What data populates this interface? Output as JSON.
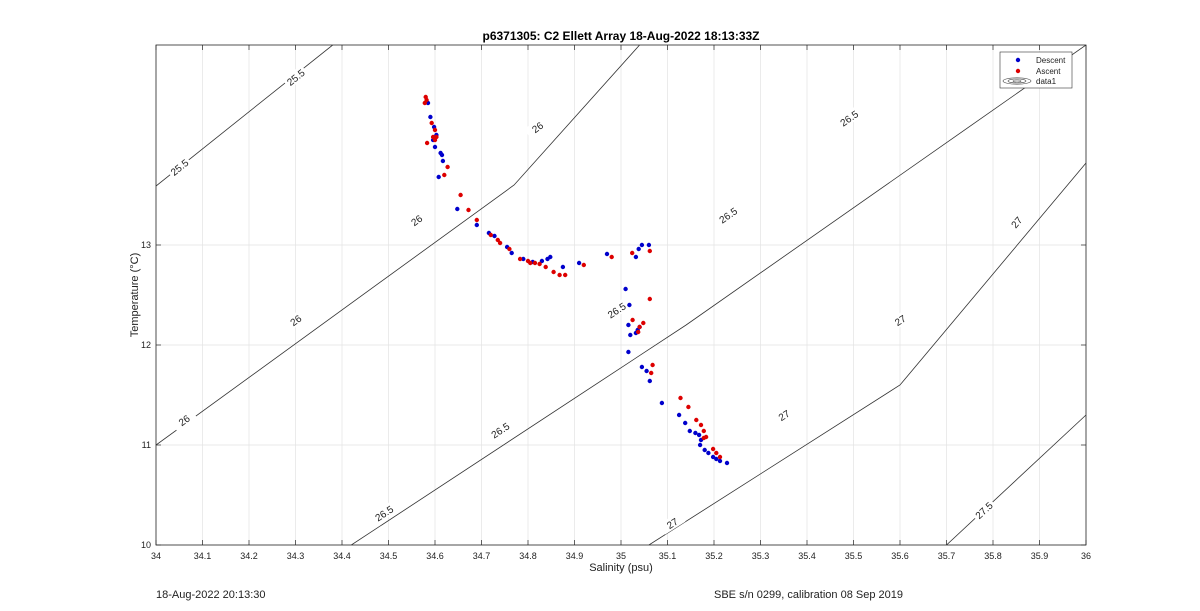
{
  "chart_data": {
    "type": "scatter",
    "title": "p6371305: C2 Ellett Array 18-Aug-2022 18:13:33Z",
    "xlabel": "Salinity (psu)",
    "ylabel": "Temperature (°C)",
    "xlim": [
      34,
      36
    ],
    "ylim": [
      10,
      15
    ],
    "x_ticks": [
      "34",
      "34.1",
      "34.2",
      "34.3",
      "34.4",
      "34.5",
      "34.6",
      "34.7",
      "34.8",
      "34.9",
      "35",
      "35.1",
      "35.2",
      "35.3",
      "35.4",
      "35.5",
      "35.6",
      "35.7",
      "35.8",
      "35.9",
      "36"
    ],
    "y_ticks": [
      "10",
      "11",
      "12",
      "13"
    ],
    "grid": true,
    "legend_position": "top-right",
    "legend": [
      {
        "label": "Descent",
        "color": "#0000cc",
        "marker": "dot"
      },
      {
        "label": "Ascent",
        "color": "#dd0000",
        "marker": "dot"
      },
      {
        "label": "data1",
        "color": "#222222",
        "marker": "contour"
      }
    ],
    "contours": [
      {
        "label": "25.5",
        "points": [
          [
            34.0,
            13.59
          ],
          [
            34.38,
            15.0
          ]
        ],
        "label_positions": [
          [
            34.05,
            13.78
          ],
          [
            34.3,
            14.68
          ]
        ]
      },
      {
        "label": "26",
        "points": [
          [
            34.0,
            11.0
          ],
          [
            34.77,
            13.6
          ],
          [
            35.04,
            15.0
          ]
        ],
        "label_positions": [
          [
            34.06,
            11.25
          ],
          [
            34.3,
            12.25
          ],
          [
            34.56,
            13.25
          ],
          [
            34.82,
            14.18
          ]
        ]
      },
      {
        "label": "26.5",
        "points": [
          [
            34.42,
            10.0
          ],
          [
            35.14,
            12.2
          ],
          [
            36.0,
            15.0
          ]
        ],
        "label_positions": [
          [
            34.49,
            10.32
          ],
          [
            34.74,
            11.15
          ],
          [
            34.99,
            12.35
          ],
          [
            35.23,
            13.3
          ],
          [
            35.49,
            14.27
          ]
        ]
      },
      {
        "label": "27",
        "points": [
          [
            35.06,
            10.0
          ],
          [
            35.6,
            11.6
          ],
          [
            36.0,
            13.82
          ]
        ],
        "label_positions": [
          [
            35.11,
            10.22
          ],
          [
            35.35,
            11.3
          ],
          [
            35.6,
            12.25
          ],
          [
            35.85,
            13.23
          ]
        ]
      },
      {
        "label": "27.5",
        "points": [
          [
            35.7,
            10.0
          ],
          [
            36.0,
            11.3
          ]
        ],
        "label_positions": [
          [
            35.78,
            10.35
          ]
        ]
      }
    ],
    "series": [
      {
        "name": "Descent",
        "color": "#0000cc",
        "points": [
          [
            34.585,
            14.42
          ],
          [
            34.59,
            14.28
          ],
          [
            34.598,
            14.18
          ],
          [
            34.603,
            14.1
          ],
          [
            34.596,
            14.05
          ],
          [
            34.6,
            13.98
          ],
          [
            34.612,
            13.92
          ],
          [
            34.615,
            13.9
          ],
          [
            34.617,
            13.84
          ],
          [
            34.608,
            13.68
          ],
          [
            34.648,
            13.36
          ],
          [
            34.69,
            13.2
          ],
          [
            34.716,
            13.12
          ],
          [
            34.728,
            13.09
          ],
          [
            34.755,
            12.98
          ],
          [
            34.765,
            12.92
          ],
          [
            34.79,
            12.86
          ],
          [
            34.81,
            12.83
          ],
          [
            34.83,
            12.84
          ],
          [
            34.842,
            12.86
          ],
          [
            34.848,
            12.88
          ],
          [
            34.875,
            12.78
          ],
          [
            34.91,
            12.82
          ],
          [
            34.97,
            12.91
          ],
          [
            35.032,
            12.88
          ],
          [
            35.038,
            12.96
          ],
          [
            35.045,
            13.0
          ],
          [
            35.06,
            13.0
          ],
          [
            35.01,
            12.56
          ],
          [
            35.018,
            12.4
          ],
          [
            35.016,
            12.2
          ],
          [
            35.02,
            12.1
          ],
          [
            35.032,
            12.12
          ],
          [
            35.036,
            12.15
          ],
          [
            35.04,
            12.18
          ],
          [
            35.016,
            11.93
          ],
          [
            35.045,
            11.78
          ],
          [
            35.055,
            11.74
          ],
          [
            35.062,
            11.64
          ],
          [
            35.088,
            11.42
          ],
          [
            35.125,
            11.3
          ],
          [
            35.138,
            11.22
          ],
          [
            35.148,
            11.14
          ],
          [
            35.16,
            11.12
          ],
          [
            35.168,
            11.1
          ],
          [
            35.172,
            11.05
          ],
          [
            35.17,
            11.0
          ],
          [
            35.18,
            10.95
          ],
          [
            35.188,
            10.92
          ],
          [
            35.198,
            10.88
          ],
          [
            35.205,
            10.86
          ],
          [
            35.213,
            10.84
          ],
          [
            35.228,
            10.82
          ]
        ]
      },
      {
        "name": "Ascent",
        "color": "#dd0000",
        "points": [
          [
            34.58,
            14.48
          ],
          [
            34.582,
            14.45
          ],
          [
            34.578,
            14.42
          ],
          [
            34.593,
            14.22
          ],
          [
            34.6,
            14.15
          ],
          [
            34.596,
            14.08
          ],
          [
            34.583,
            14.02
          ],
          [
            34.6,
            14.05
          ],
          [
            34.603,
            14.08
          ],
          [
            34.62,
            13.7
          ],
          [
            34.627,
            13.78
          ],
          [
            34.655,
            13.5
          ],
          [
            34.672,
            13.35
          ],
          [
            34.69,
            13.25
          ],
          [
            34.72,
            13.1
          ],
          [
            34.735,
            13.05
          ],
          [
            34.74,
            13.02
          ],
          [
            34.76,
            12.96
          ],
          [
            34.783,
            12.86
          ],
          [
            34.8,
            12.84
          ],
          [
            34.805,
            12.82
          ],
          [
            34.815,
            12.82
          ],
          [
            34.825,
            12.81
          ],
          [
            34.838,
            12.78
          ],
          [
            34.855,
            12.73
          ],
          [
            34.868,
            12.7
          ],
          [
            34.88,
            12.7
          ],
          [
            34.92,
            12.8
          ],
          [
            34.98,
            12.88
          ],
          [
            35.024,
            12.92
          ],
          [
            35.062,
            12.94
          ],
          [
            35.062,
            12.46
          ],
          [
            35.025,
            12.25
          ],
          [
            35.04,
            12.18
          ],
          [
            35.048,
            12.22
          ],
          [
            35.037,
            12.13
          ],
          [
            35.068,
            11.8
          ],
          [
            35.065,
            11.72
          ],
          [
            35.128,
            11.47
          ],
          [
            35.145,
            11.38
          ],
          [
            35.162,
            11.25
          ],
          [
            35.172,
            11.2
          ],
          [
            35.178,
            11.14
          ],
          [
            35.183,
            11.08
          ],
          [
            35.178,
            11.07
          ],
          [
            35.198,
            10.96
          ],
          [
            35.205,
            10.92
          ],
          [
            35.213,
            10.88
          ]
        ]
      }
    ]
  },
  "footer": {
    "left": "18-Aug-2022 20:13:30",
    "right": "SBE s/n 0299, calibration 08 Sep 2019"
  }
}
